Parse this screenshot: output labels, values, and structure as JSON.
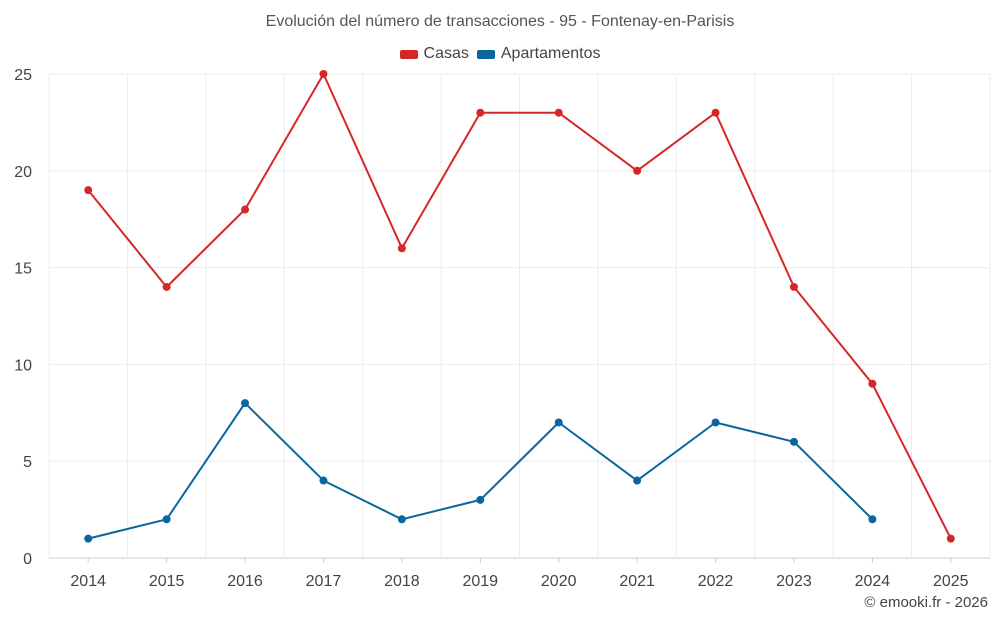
{
  "chart_data": {
    "type": "line",
    "title": "Evolución del número de transacciones - 95 - Fontenay-en-Parisis",
    "categories": [
      "2014",
      "2015",
      "2016",
      "2017",
      "2018",
      "2019",
      "2020",
      "2021",
      "2022",
      "2023",
      "2024",
      "2025"
    ],
    "series": [
      {
        "name": "Casas",
        "color": "#d62728",
        "values": [
          19,
          14,
          18,
          25,
          16,
          23,
          23,
          20,
          23,
          14,
          9,
          1
        ]
      },
      {
        "name": "Apartamentos",
        "color": "#0b66a0",
        "values": [
          1,
          2,
          8,
          4,
          2,
          3,
          7,
          4,
          7,
          6,
          2,
          null
        ]
      }
    ],
    "ylim": [
      0,
      25
    ],
    "yticks": [
      "0",
      "5",
      "10",
      "15",
      "20",
      "25"
    ],
    "xlabel": "",
    "ylabel": "",
    "grid": true,
    "legend_position": "top-center"
  },
  "credit": "© emooki.fr - 2026"
}
